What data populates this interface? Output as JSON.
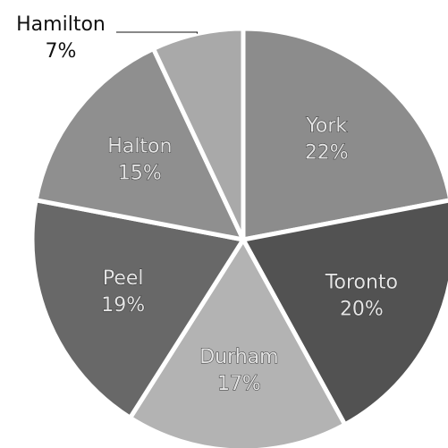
{
  "chart_data": {
    "type": "pie",
    "categories": [
      "York",
      "Toronto",
      "Durham",
      "Peel",
      "Halton",
      "Hamilton"
    ],
    "values": [
      22,
      20,
      17,
      19,
      15,
      7
    ],
    "value_labels": [
      "22%",
      "20%",
      "17%",
      "19%",
      "15%",
      "7%"
    ],
    "colors": [
      "#8c8c8c",
      "#525252",
      "#b3b3b3",
      "#686868",
      "#8f8f8f",
      "#a9a9a9"
    ]
  }
}
